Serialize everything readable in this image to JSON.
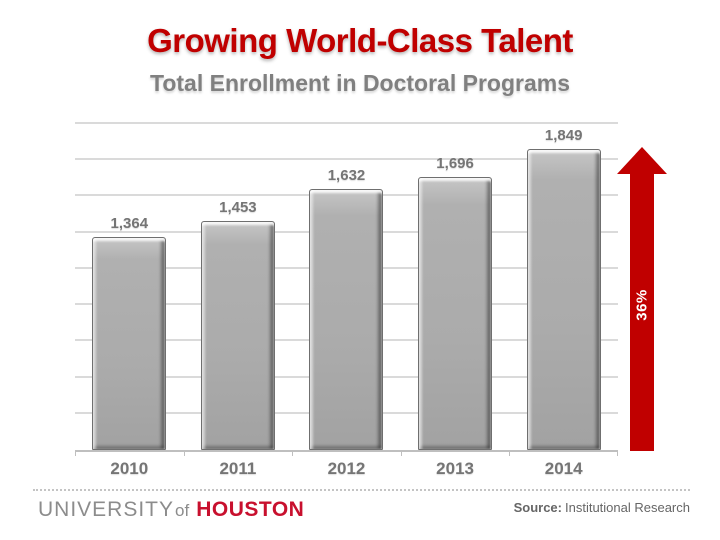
{
  "chart_data": {
    "type": "bar",
    "title": "Growing World-Class Talent",
    "subtitle": "Total Enrollment in Doctoral Programs",
    "categories": [
      "2010",
      "2011",
      "2012",
      "2013",
      "2014"
    ],
    "values": [
      1364,
      1453,
      1632,
      1696,
      1849
    ],
    "value_labels": [
      "1,364",
      "1,453",
      "1,632",
      "1,696",
      "1,849"
    ],
    "xlabel": "",
    "ylabel": "",
    "ylim": [
      200,
      2000
    ],
    "grid_step": 200,
    "grid": true,
    "legend": false,
    "annotation": {
      "text": "36%",
      "shape": "up-arrow"
    }
  },
  "footer": {
    "logo": {
      "university": "UNIVERSITY",
      "of": "of",
      "houston": "HOUSTON"
    },
    "source_label": "Source:",
    "source_value": "Institutional Research"
  },
  "colors": {
    "title_red": "#c00000",
    "arrow_red": "#c00000",
    "houston_red": "#c8102e",
    "bar_fill": "#ababab",
    "bar_edge": "#6f6f6f",
    "gridline": "#dadada",
    "axis": "#bfbfbf",
    "label_gray": "#757575",
    "subtitle_gray": "#808080",
    "logo_gray": "#8c8c8c",
    "source_gray": "#666666",
    "annotation_text": "#ffffff"
  }
}
